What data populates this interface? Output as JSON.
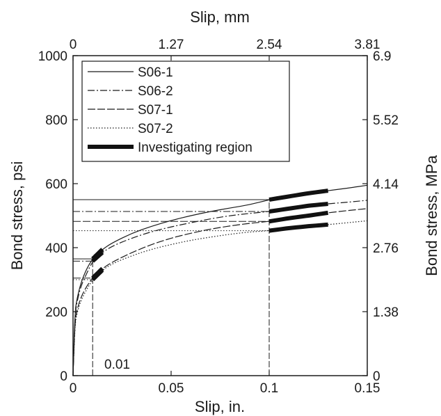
{
  "chart_data": {
    "type": "line",
    "xlabel": "Slip, in.",
    "x2label": "Slip, mm",
    "ylabel": "Bond stress, psi",
    "y2label": "Bond stress, MPa",
    "xlim": [
      0,
      0.15
    ],
    "ylim": [
      0,
      1000
    ],
    "x_ticks": [
      "0",
      "0.05",
      "0.1",
      "0.15"
    ],
    "x_tick_values": [
      0,
      0.05,
      0.1,
      0.15
    ],
    "x2_ticks": [
      "0",
      "1.27",
      "2.54",
      "3.81"
    ],
    "x2_tick_values": [
      0,
      1.27,
      2.54,
      3.81
    ],
    "y_ticks": [
      "0",
      "200",
      "400",
      "600",
      "800",
      "1000"
    ],
    "y_tick_values": [
      0,
      200,
      400,
      600,
      800,
      1000
    ],
    "y2_ticks": [
      "0",
      "1.38",
      "2.76",
      "4.14",
      "5.52",
      "6.9"
    ],
    "y2_tick_values": [
      0,
      1.38,
      2.76,
      4.14,
      5.52,
      6.9
    ],
    "grid": false,
    "legend_position": "top-left",
    "annotation": "0.01",
    "reference_x": [
      0.01,
      0.1
    ],
    "highlight_label": "Investigating region",
    "highlight_ranges": [
      [
        0.01,
        0.015
      ],
      [
        0.1,
        0.13
      ]
    ],
    "series": [
      {
        "name": "S06-1",
        "style": "solid",
        "x": [
          0,
          0.001,
          0.002,
          0.004,
          0.007,
          0.01,
          0.015,
          0.02,
          0.03,
          0.04,
          0.05,
          0.06,
          0.07,
          0.08,
          0.09,
          0.1,
          0.11,
          0.12,
          0.13,
          0.14,
          0.15
        ],
        "y": [
          0,
          200,
          240,
          290,
          335,
          365,
          395,
          415,
          445,
          467,
          485,
          500,
          513,
          524,
          534,
          550,
          560,
          570,
          578,
          586,
          595
        ]
      },
      {
        "name": "S06-2",
        "style": "dash-dot",
        "x": [
          0,
          0.001,
          0.002,
          0.004,
          0.007,
          0.01,
          0.015,
          0.02,
          0.03,
          0.04,
          0.05,
          0.06,
          0.07,
          0.08,
          0.09,
          0.1,
          0.11,
          0.12,
          0.13,
          0.14,
          0.15
        ],
        "y": [
          0,
          190,
          230,
          280,
          320,
          358,
          385,
          405,
          430,
          450,
          465,
          478,
          490,
          500,
          507,
          513,
          522,
          531,
          537,
          542,
          548
        ]
      },
      {
        "name": "S07-1",
        "style": "long-dash",
        "x": [
          0,
          0.001,
          0.002,
          0.004,
          0.007,
          0.01,
          0.015,
          0.02,
          0.03,
          0.04,
          0.05,
          0.06,
          0.07,
          0.08,
          0.09,
          0.1,
          0.11,
          0.12,
          0.13,
          0.14,
          0.15
        ],
        "y": [
          0,
          170,
          205,
          245,
          280,
          305,
          335,
          355,
          385,
          410,
          430,
          445,
          458,
          468,
          476,
          482,
          492,
          500,
          509,
          516,
          522
        ]
      },
      {
        "name": "S07-2",
        "style": "dotted",
        "x": [
          0,
          0.001,
          0.002,
          0.004,
          0.007,
          0.01,
          0.015,
          0.02,
          0.03,
          0.04,
          0.05,
          0.06,
          0.07,
          0.08,
          0.09,
          0.1,
          0.11,
          0.12,
          0.13,
          0.14,
          0.15
        ],
        "y": [
          0,
          160,
          195,
          235,
          270,
          300,
          330,
          350,
          375,
          395,
          410,
          423,
          433,
          442,
          449,
          453,
          461,
          467,
          472,
          478,
          484
        ]
      }
    ]
  }
}
